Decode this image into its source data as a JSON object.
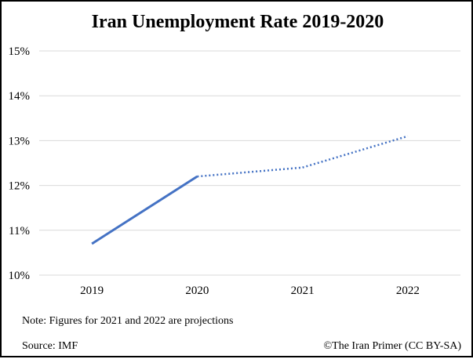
{
  "chart_data": {
    "type": "line",
    "title": "Iran Unemployment Rate 2019-2020",
    "xlabel": "",
    "ylabel": "",
    "categories": [
      "2019",
      "2020",
      "2021",
      "2022"
    ],
    "y_ticks": [
      "10%",
      "11%",
      "12%",
      "13%",
      "14%",
      "15%"
    ],
    "ylim": [
      10,
      15
    ],
    "grid": true,
    "legend": "none",
    "series": [
      {
        "values": [
          10.7,
          12.2,
          12.4,
          13.1
        ],
        "style": [
          "solid",
          "solid",
          "dotted",
          "dotted"
        ],
        "color": "#4472C4"
      }
    ]
  },
  "footer": {
    "note": "Note: Figures for 2021 and 2022 are projections",
    "source": "Source: IMF",
    "credit": "©The Iran Primer (CC BY-SA)"
  }
}
